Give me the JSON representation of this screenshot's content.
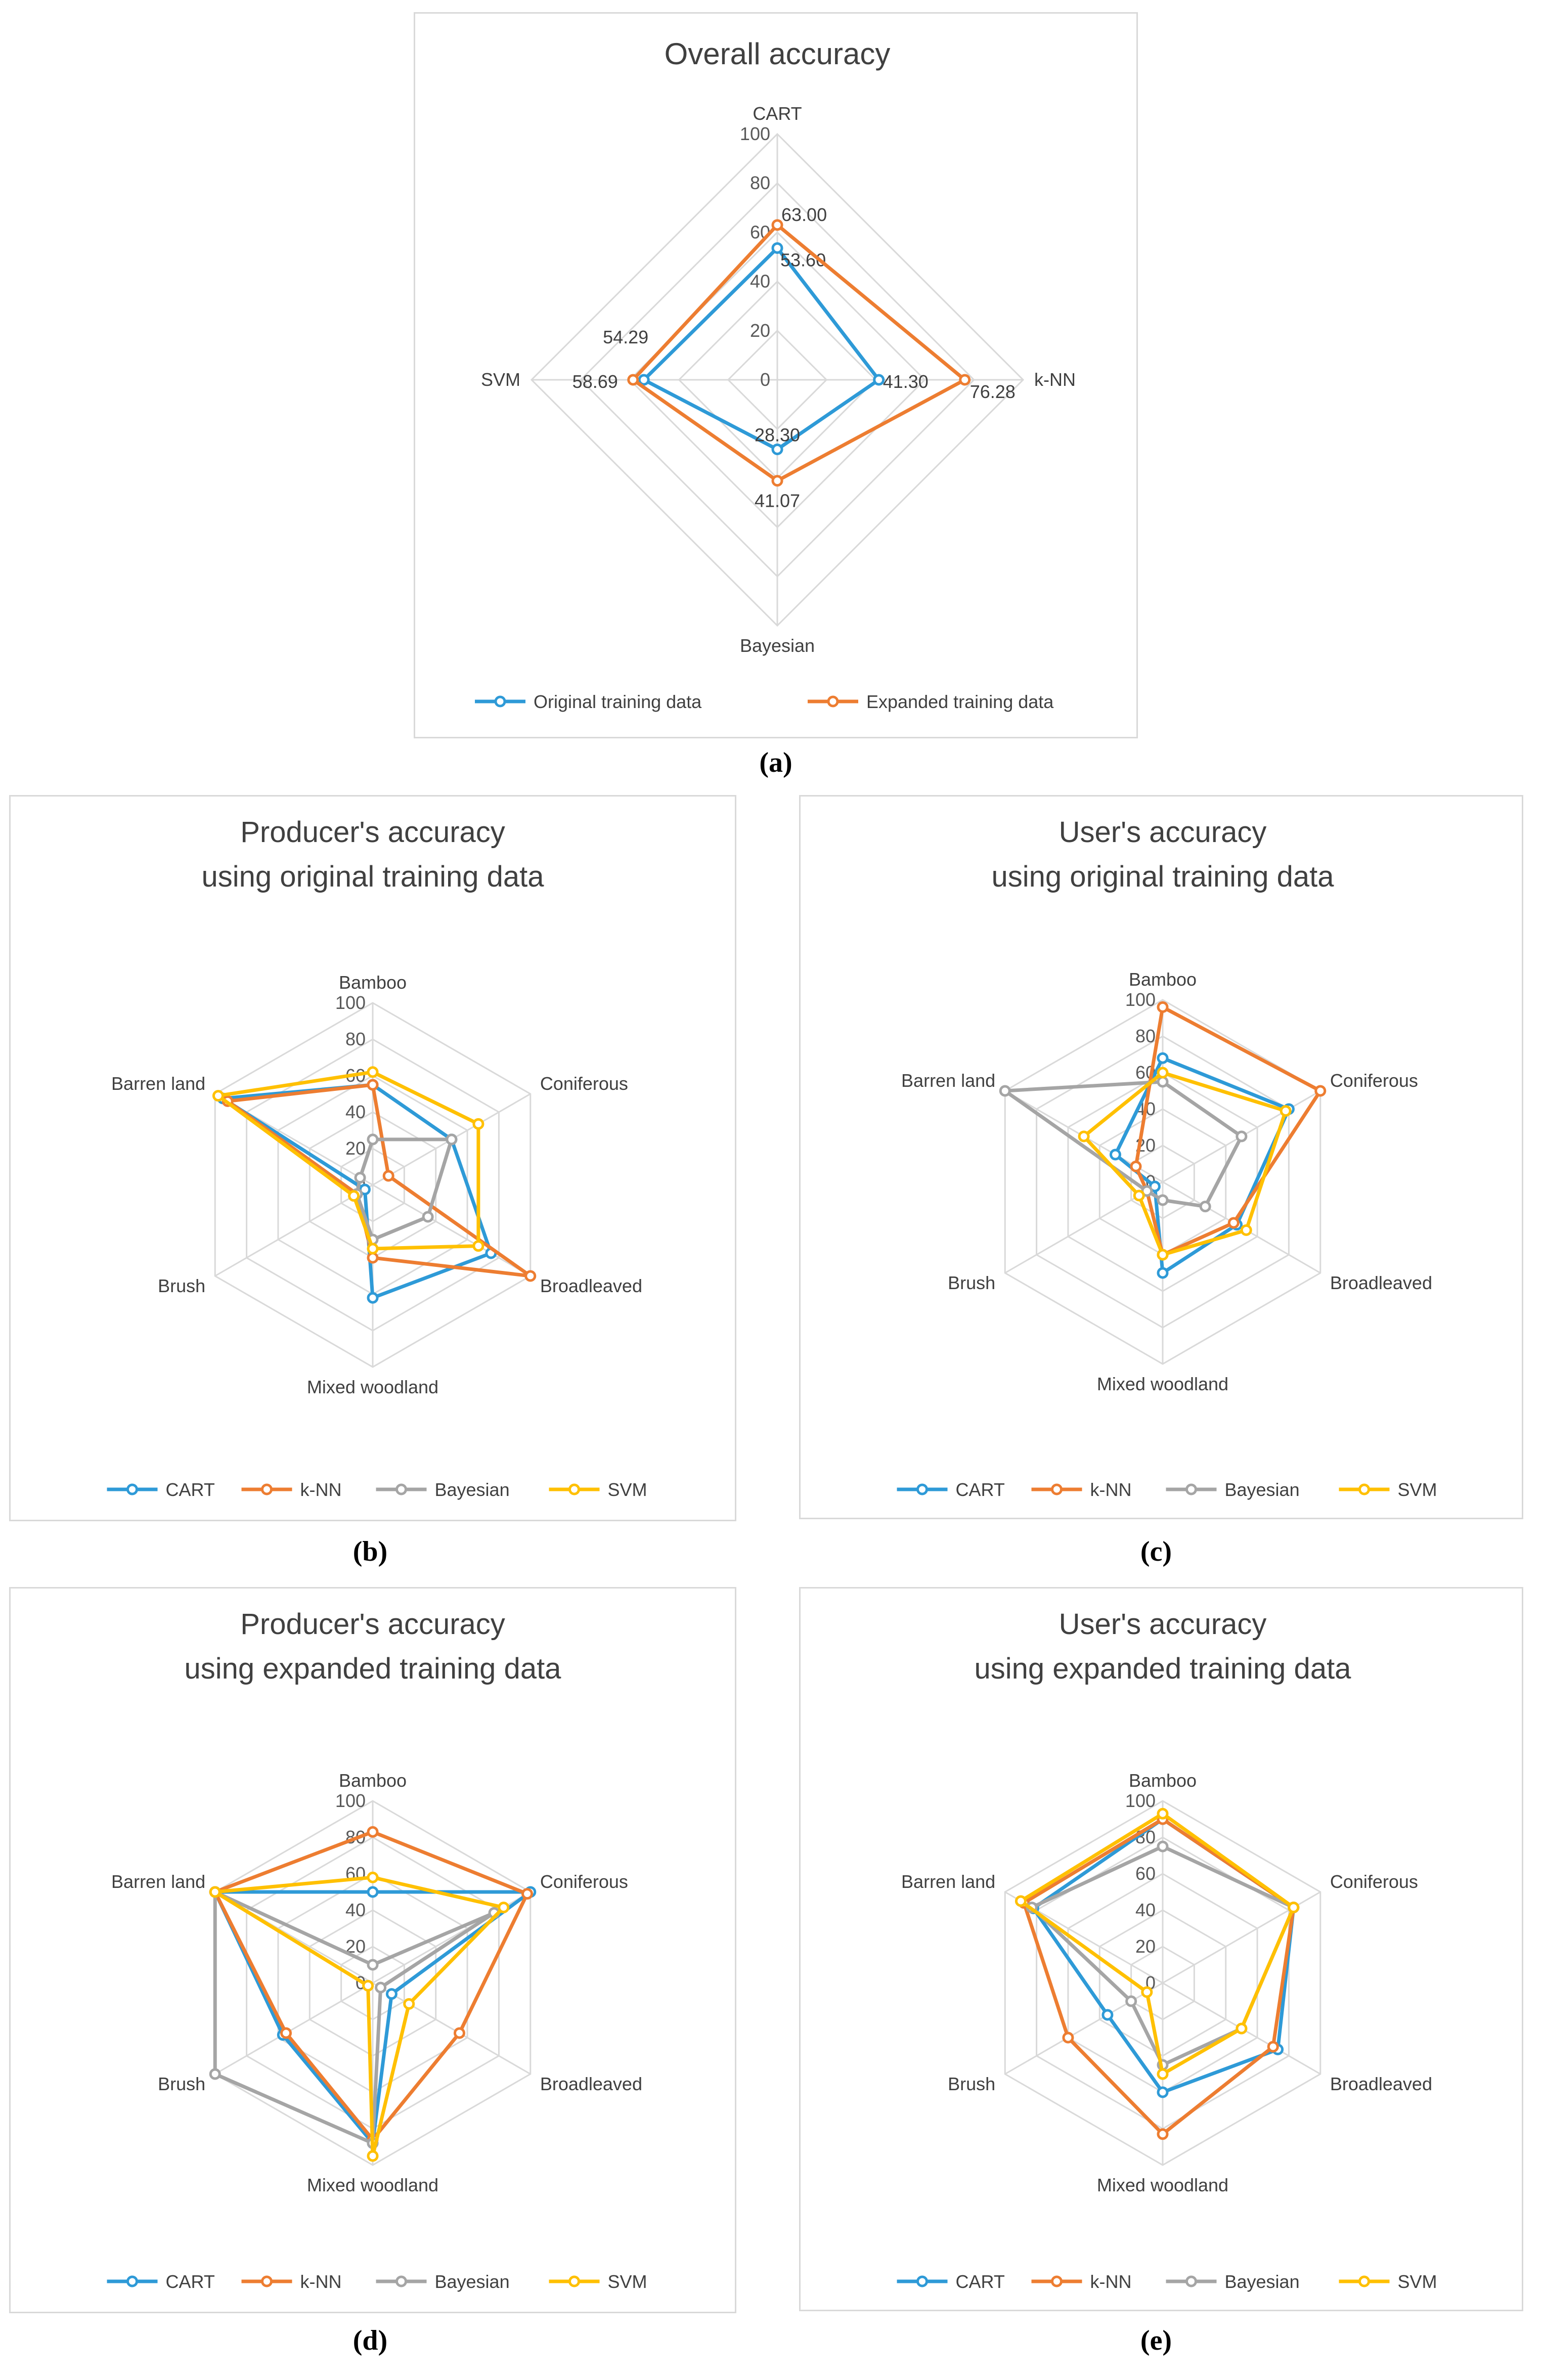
{
  "chart_data": [
    {
      "id": "a",
      "type": "radar",
      "caption": "(a)",
      "title_lines": [
        "Overall accuracy"
      ],
      "axes": [
        "CART",
        "k-NN",
        "Bayesian",
        "SVM"
      ],
      "scale": {
        "min": 0,
        "max": 100,
        "ticks": [
          0,
          20,
          40,
          60,
          80,
          100
        ]
      },
      "colors": [
        "#2e9ad7",
        "#ed7d31"
      ],
      "series": [
        {
          "name": "Original training data",
          "values": [
            53.6,
            41.3,
            28.3,
            54.29
          ],
          "labels": [
            "53.60",
            "41.30",
            "28.30",
            "54.29"
          ]
        },
        {
          "name": "Expanded training data",
          "values": [
            63.0,
            76.28,
            41.07,
            58.69
          ],
          "labels": [
            "63.00",
            "76.28",
            "41.07",
            "58.69"
          ]
        }
      ]
    },
    {
      "id": "b",
      "type": "radar",
      "caption": "(b)",
      "title_lines": [
        "Producer's accuracy",
        "using original training data"
      ],
      "axes": [
        "Bamboo",
        "Coniferous",
        "Broadleaved",
        "Mixed woodland",
        "Brush",
        "Barren land"
      ],
      "scale": {
        "min": 0,
        "max": 100,
        "ticks": [
          0,
          20,
          40,
          60,
          80,
          100
        ]
      },
      "colors": [
        "#2e9ad7",
        "#ed7d31",
        "#a5a5a5",
        "#ffc000"
      ],
      "series": [
        {
          "name": "CART",
          "values": [
            55,
            50,
            75,
            62,
            5,
            95
          ]
        },
        {
          "name": "k-NN",
          "values": [
            55,
            10,
            100,
            40,
            10,
            92
          ]
        },
        {
          "name": "Bayesian",
          "values": [
            25,
            50,
            35,
            30,
            10,
            8
          ]
        },
        {
          "name": "SVM",
          "values": [
            62,
            67,
            67,
            35,
            12,
            98
          ]
        }
      ]
    },
    {
      "id": "c",
      "type": "radar",
      "caption": "(c)",
      "title_lines": [
        "User's accuracy",
        "using original training data"
      ],
      "axes": [
        "Bamboo",
        "Coniferous",
        "Broadleaved",
        "Mixed woodland",
        "Brush",
        "Barren land"
      ],
      "scale": {
        "min": 0,
        "max": 100,
        "ticks": [
          0,
          20,
          40,
          60,
          80,
          100
        ]
      },
      "colors": [
        "#2e9ad7",
        "#ed7d31",
        "#a5a5a5",
        "#ffc000"
      ],
      "series": [
        {
          "name": "CART",
          "values": [
            68,
            80,
            47,
            50,
            5,
            30
          ]
        },
        {
          "name": "k-NN",
          "values": [
            96,
            100,
            45,
            40,
            10,
            17
          ]
        },
        {
          "name": "Bayesian",
          "values": [
            55,
            50,
            27,
            10,
            10,
            100
          ]
        },
        {
          "name": "SVM",
          "values": [
            60,
            78,
            53,
            40,
            15,
            50
          ]
        }
      ]
    },
    {
      "id": "d",
      "type": "radar",
      "caption": "(d)",
      "title_lines": [
        "Producer's accuracy",
        "using expanded training data"
      ],
      "axes": [
        "Bamboo",
        "Coniferous",
        "Broadleaved",
        "Mixed woodland",
        "Brush",
        "Barren land"
      ],
      "scale": {
        "min": 0,
        "max": 100,
        "ticks": [
          0,
          20,
          40,
          60,
          80,
          100
        ]
      },
      "colors": [
        "#2e9ad7",
        "#ed7d31",
        "#a5a5a5",
        "#ffc000"
      ],
      "series": [
        {
          "name": "CART",
          "values": [
            50,
            100,
            12,
            88,
            57,
            100
          ]
        },
        {
          "name": "k-NN",
          "values": [
            83,
            98,
            55,
            86,
            55,
            100
          ]
        },
        {
          "name": "Bayesian",
          "values": [
            10,
            77,
            5,
            88,
            100,
            100
          ]
        },
        {
          "name": "SVM",
          "values": [
            58,
            83,
            23,
            95,
            3,
            100
          ]
        }
      ]
    },
    {
      "id": "e",
      "type": "radar",
      "caption": "(e)",
      "title_lines": [
        "User's accuracy",
        "using expanded training data"
      ],
      "axes": [
        "Bamboo",
        "Coniferous",
        "Broadleaved",
        "Mixed woodland",
        "Brush",
        "Barren land"
      ],
      "scale": {
        "min": 0,
        "max": 100,
        "ticks": [
          0,
          20,
          40,
          60,
          80,
          100
        ]
      },
      "colors": [
        "#2e9ad7",
        "#ed7d31",
        "#a5a5a5",
        "#ffc000"
      ],
      "series": [
        {
          "name": "CART",
          "values": [
            90,
            83,
            73,
            60,
            35,
            82
          ]
        },
        {
          "name": "k-NN",
          "values": [
            90,
            83,
            70,
            83,
            60,
            88
          ]
        },
        {
          "name": "Bayesian",
          "values": [
            75,
            83,
            50,
            45,
            20,
            83
          ]
        },
        {
          "name": "SVM",
          "values": [
            93,
            83,
            50,
            50,
            10,
            90
          ]
        }
      ]
    }
  ]
}
